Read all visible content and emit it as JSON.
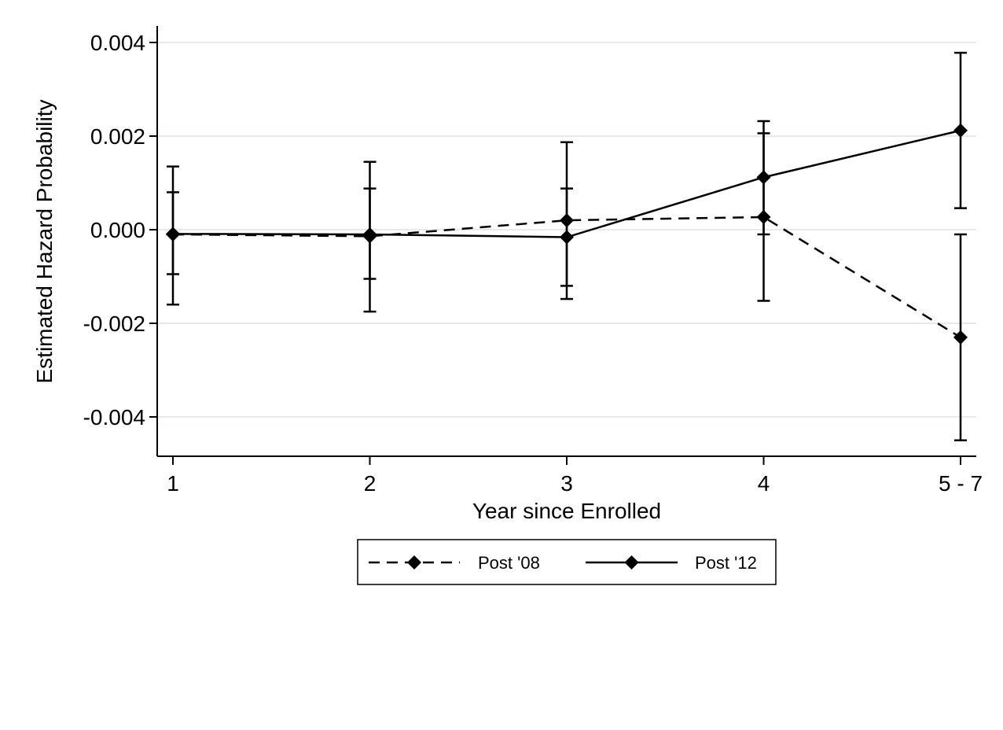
{
  "chart_data": {
    "type": "line",
    "title": "",
    "xlabel": "Year since Enrolled",
    "ylabel": "Estimated Hazard Probability",
    "categories": [
      "1",
      "2",
      "3",
      "4",
      "5 - 7"
    ],
    "ylim": [
      -0.0048,
      0.0046
    ],
    "yticks": [
      0.004,
      0.002,
      0.0,
      -0.002,
      -0.004
    ],
    "ytick_labels": [
      "0.004",
      "0.002",
      "0.000",
      "-0.002",
      "-0.004"
    ],
    "grid": "horizontal",
    "legend_position": "bottom",
    "series": [
      {
        "name": "Post '08",
        "line_style": "dashed",
        "marker": "diamond",
        "color": "#000000",
        "values": [
          -0.0001,
          -0.00014,
          0.0002,
          0.00027,
          -0.0023
        ],
        "ci_low": [
          -0.0016,
          -0.00175,
          -0.0012,
          -0.00152,
          -0.0045
        ],
        "ci_high": [
          0.00135,
          0.00145,
          0.00187,
          0.00232,
          -0.0001
        ]
      },
      {
        "name": "Post '12",
        "line_style": "solid",
        "marker": "diamond",
        "color": "#000000",
        "values": [
          -9e-05,
          -0.0001,
          -0.00016,
          0.00112,
          0.00212
        ],
        "ci_low": [
          -0.00095,
          -0.00105,
          -0.00148,
          -0.0001,
          0.00046
        ],
        "ci_high": [
          0.0008,
          0.00088,
          0.00088,
          0.00206,
          0.00378
        ]
      }
    ]
  },
  "colors": {
    "grid": "#e4ebee",
    "axis": "#000000",
    "series": "#000000"
  }
}
